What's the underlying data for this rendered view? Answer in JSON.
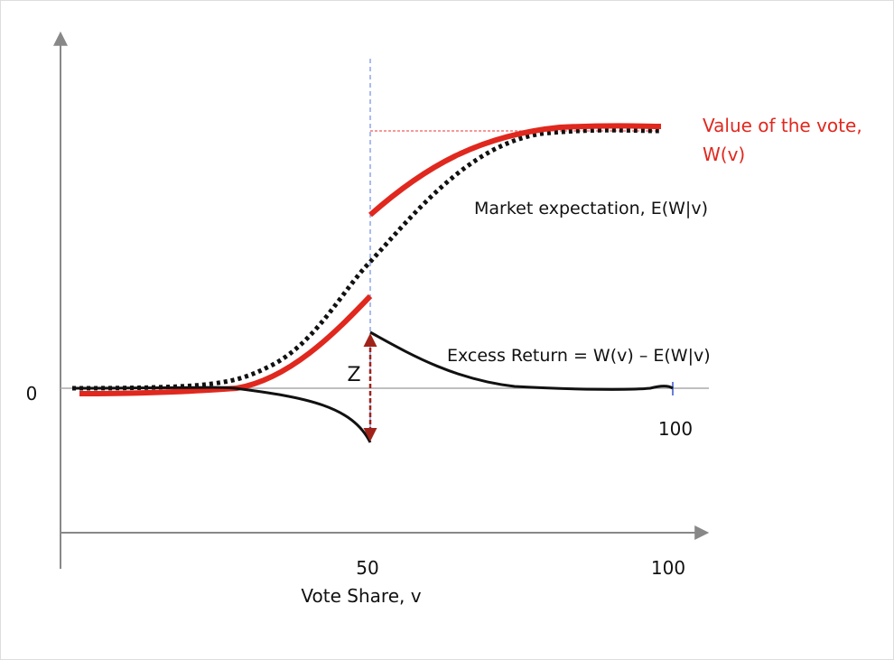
{
  "axes": {
    "y_zero_label": "0",
    "x_tick_labels": [
      "50",
      "100"
    ],
    "x_label": "Vote Share, v",
    "zero_line_end_label": "100"
  },
  "curves": {
    "value_label": [
      "Value of  the vote,",
      "W(v)"
    ],
    "expectation_label": "Market expectation, E(W|v)",
    "excess_label": "Excess Return = W(v) – E(W|v)",
    "jump_label": "Z"
  }
}
